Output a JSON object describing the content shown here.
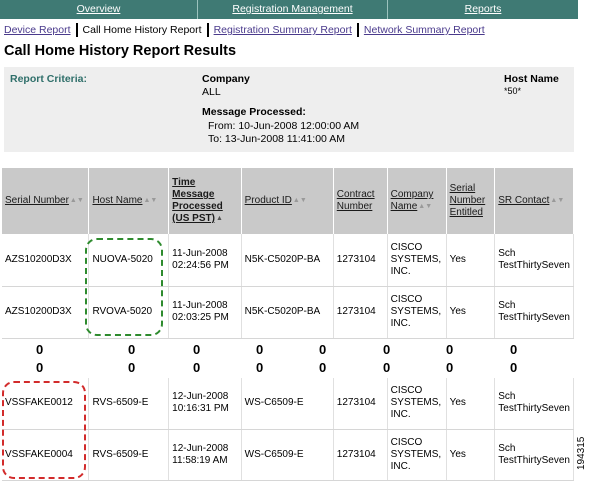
{
  "nav": {
    "overview": "Overview",
    "registration_management": "Registration Management",
    "reports": "Reports"
  },
  "subnav": {
    "device_report": "Device Report",
    "call_home_history": "Call Home History Report",
    "registration_summary": "Registration Summary Report",
    "network_summary": "Network Summary Report"
  },
  "page_title": "Call Home History Report Results",
  "criteria": {
    "label": "Report Criteria:",
    "company_heading": "Company",
    "company_value": "ALL",
    "message_heading": "Message Processed:",
    "from": "From: 10-Jun-2008 12:00:00 AM",
    "to": "To: 13-Jun-2008 11:41:00 AM",
    "host_heading": "Host Name",
    "host_value": "*50*"
  },
  "table": {
    "headers": {
      "serial": "Serial Number",
      "host": "Host Name",
      "time": "Time Message Processed (US PST)",
      "product": "Product ID",
      "contract": "Contract Number",
      "company": "Company Name",
      "entitled": "Serial Number Entitled",
      "sr": "SR Contact"
    },
    "rows_top": [
      {
        "serial": "AZS10200D3X",
        "host": "NUOVA-5020",
        "time": "11-Jun-2008 02:24:56 PM",
        "product": "N5K-C5020P-BA",
        "contract": "1273104",
        "company": "CISCO SYSTEMS, INC.",
        "entitled": "Yes",
        "sr": "Sch TestThirtySeven"
      },
      {
        "serial": "AZS10200D3X",
        "host": "RVOVA-5020",
        "time": "11-Jun-2008 02:03:25 PM",
        "product": "N5K-C5020P-BA",
        "contract": "1273104",
        "company": "CISCO SYSTEMS, INC.",
        "entitled": "Yes",
        "sr": "Sch TestThirtySeven"
      }
    ],
    "filler_value": "0",
    "rows_bottom": [
      {
        "serial": "VSSFAKE0012",
        "host": "RVS-6509-E",
        "time": "12-Jun-2008 10:16:31 PM",
        "product": "WS-C6509-E",
        "contract": "1273104",
        "company": "CISCO SYSTEMS, INC.",
        "entitled": "Yes",
        "sr": "Sch TestThirtySeven"
      },
      {
        "serial": "VSSFAKE0004",
        "host": "RVS-6509-E",
        "time": "12-Jun-2008 11:58:19 AM",
        "product": "WS-C6509-E",
        "contract": "1273104",
        "company": "CISCO SYSTEMS, INC.",
        "entitled": "Yes",
        "sr": "Sch TestThirtySeven"
      }
    ]
  },
  "figure_id": "194315",
  "colors": {
    "nav_bg": "#3f7a74",
    "header_bg": "#c9c9c9",
    "criteria_bg": "#eeeeee",
    "highlight_green": "#2e8b2e",
    "highlight_red": "#d22b2b"
  }
}
